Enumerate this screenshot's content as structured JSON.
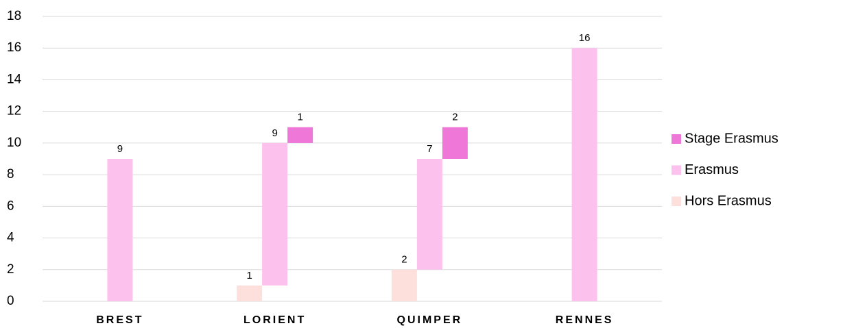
{
  "chart_data": {
    "type": "bar",
    "stacked": true,
    "categories": [
      "BREST",
      "LORIENT",
      "QUIMPER",
      "RENNES"
    ],
    "series": [
      {
        "name": "Hors Erasmus",
        "color": "#fde0dc",
        "values": [
          0,
          1,
          2,
          0
        ]
      },
      {
        "name": "Erasmus",
        "color": "#fdc1ee",
        "values": [
          9,
          9,
          7,
          16
        ]
      },
      {
        "name": "Stage Erasmus",
        "color": "#ee77d8",
        "values": [
          0,
          1,
          2,
          0
        ]
      }
    ],
    "ylim": [
      0,
      18
    ],
    "yticks": [
      0,
      2,
      4,
      6,
      8,
      10,
      12,
      14,
      16,
      18
    ],
    "grid": true,
    "legend": "right"
  }
}
